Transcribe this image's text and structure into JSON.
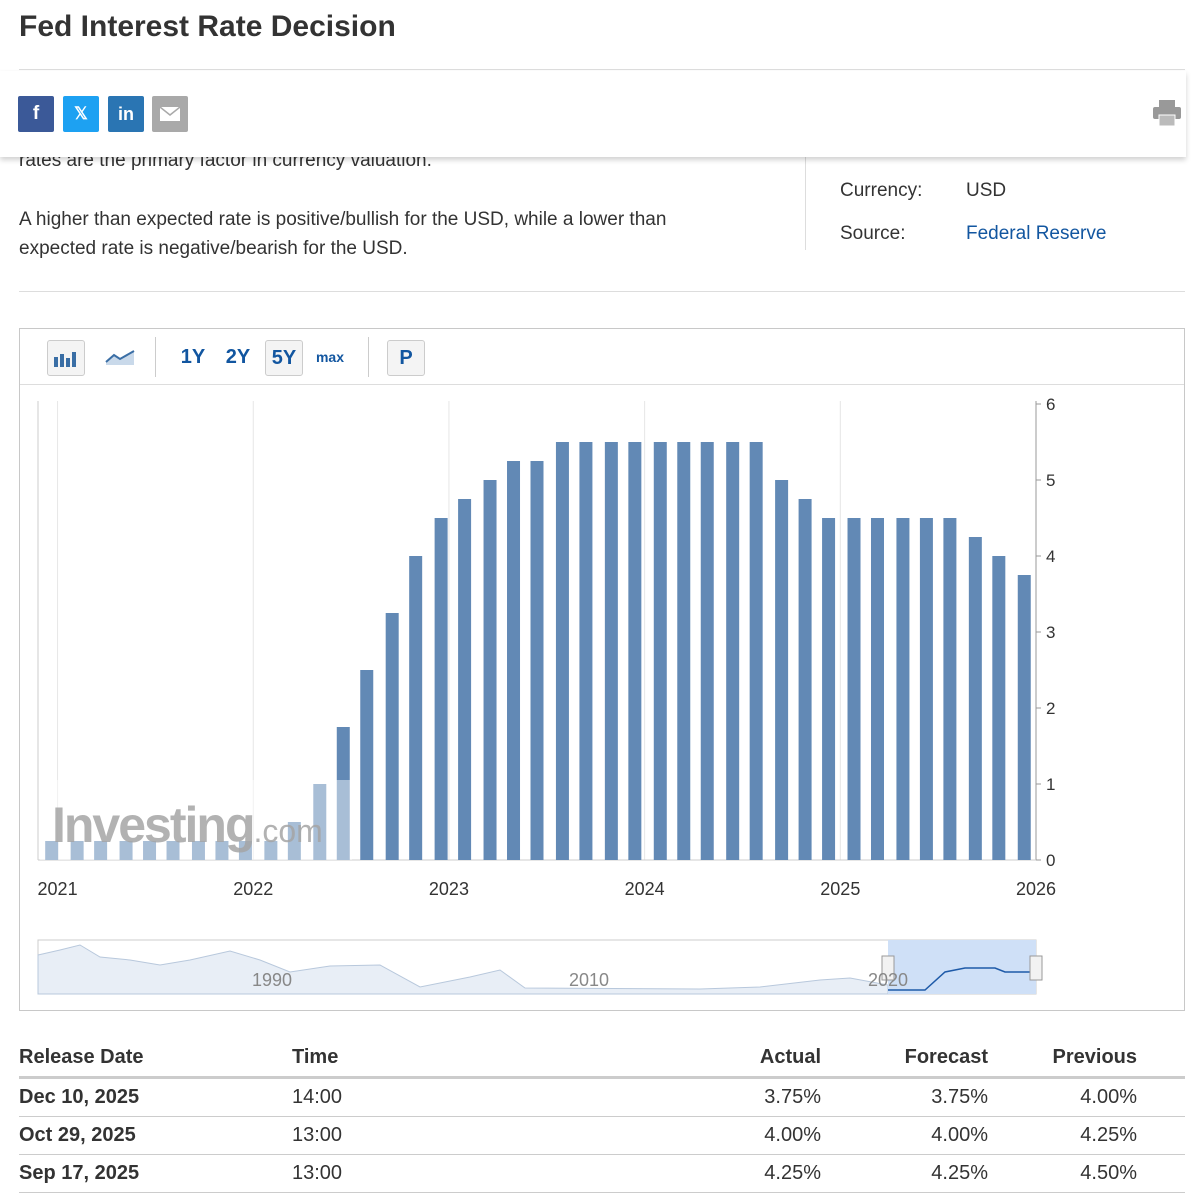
{
  "header": {
    "title": "Fed Interest Rate Decision"
  },
  "description": {
    "paragraphs": [
      "rates are the primary factor in currency valuation.",
      "A higher than expected rate is positive/bullish for the USD, while a lower than expected rate is negative/bearish for the USD."
    ]
  },
  "details": {
    "rows": [
      [
        "Currency:",
        "USD"
      ],
      [
        "Source:",
        "Federal Reserve"
      ]
    ]
  },
  "toolbar": {
    "ranges": [
      "1Y",
      "2Y",
      "5Y",
      "max"
    ],
    "page_button": "P"
  },
  "chart_data": {
    "type": "bar",
    "x": [
      2020.97,
      2021.1,
      2021.22,
      2021.35,
      2021.47,
      2021.59,
      2021.72,
      2021.84,
      2021.96,
      2022.09,
      2022.21,
      2022.34,
      2022.46,
      2022.58,
      2022.71,
      2022.83,
      2022.96,
      2023.08,
      2023.21,
      2023.33,
      2023.45,
      2023.58,
      2023.7,
      2023.83,
      2023.95,
      2024.08,
      2024.2,
      2024.32,
      2024.45,
      2024.57,
      2024.7,
      2024.82,
      2024.94,
      2025.07,
      2025.19,
      2025.32,
      2025.44,
      2025.56,
      2025.69,
      2025.81,
      2025.94
    ],
    "values": [
      0.25,
      0.25,
      0.25,
      0.25,
      0.25,
      0.25,
      0.25,
      0.25,
      0.25,
      0.25,
      0.5,
      1.0,
      1.75,
      2.5,
      3.25,
      4.0,
      4.5,
      4.75,
      5.0,
      5.25,
      5.25,
      5.5,
      5.5,
      5.5,
      5.5,
      5.5,
      5.5,
      5.5,
      5.5,
      5.5,
      5.0,
      4.75,
      4.5,
      4.5,
      4.5,
      4.5,
      4.5,
      4.5,
      4.25,
      4.0,
      3.75
    ],
    "color": "#6289b5",
    "xlim": [
      2020.9,
      2026
    ],
    "xticks": [
      2021,
      2022,
      2023,
      2024,
      2025,
      2026
    ],
    "ylim": [
      0,
      6
    ],
    "yticks": [
      0,
      1,
      2,
      3,
      4,
      5,
      6
    ],
    "grid": true
  },
  "watermark": {
    "brand": "Investing",
    "suffix": ".com"
  },
  "navigator": {
    "labels": [
      "1990",
      "2010",
      "2020"
    ]
  },
  "table": {
    "columns": [
      "Release Date",
      "Time",
      "Actual",
      "Forecast",
      "Previous"
    ],
    "rows": [
      [
        "Dec 10, 2025",
        "14:00",
        "3.75%",
        "3.75%",
        "4.00%"
      ],
      [
        "Oct 29, 2025",
        "13:00",
        "4.00%",
        "4.00%",
        "4.25%"
      ],
      [
        "Sep 17, 2025",
        "13:00",
        "4.25%",
        "4.25%",
        "4.50%"
      ]
    ]
  }
}
